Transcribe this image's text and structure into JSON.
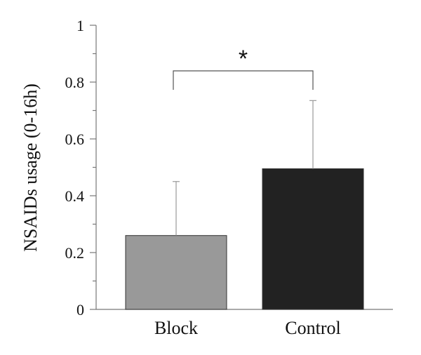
{
  "chart_data": {
    "type": "bar",
    "title": "",
    "xlabel": "",
    "ylabel": "NSAIDs usage (0-16h)",
    "ylim": [
      0,
      1
    ],
    "yticks": [
      0,
      0.2,
      0.4,
      0.6,
      0.8,
      1
    ],
    "ytick_labels": [
      "0",
      "0.2",
      "0.4",
      "0.6",
      "0.8",
      "1"
    ],
    "grid": false,
    "categories": [
      "Block",
      "Control"
    ],
    "values": [
      0.26,
      0.495
    ],
    "error_upper": [
      0.45,
      0.735
    ],
    "colors": [
      "#999999",
      "#222222"
    ],
    "significance": {
      "between": [
        "Block",
        "Control"
      ],
      "label": "*"
    }
  }
}
